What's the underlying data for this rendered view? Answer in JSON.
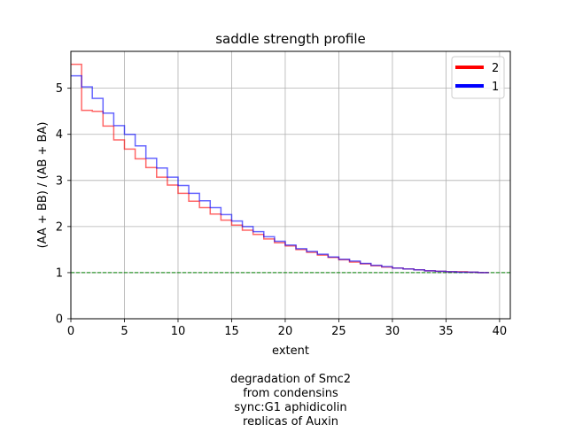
{
  "chart_data": {
    "type": "line",
    "title": "saddle strength profile",
    "xlabel": "extent",
    "ylabel": "(AA + BB) / (AB + BA)",
    "xlim": [
      0,
      41
    ],
    "ylim": [
      0,
      5.8
    ],
    "xticks": [
      0,
      5,
      10,
      15,
      20,
      25,
      30,
      35,
      40
    ],
    "yticks": [
      0,
      1,
      2,
      3,
      4,
      5
    ],
    "grid": true,
    "legend_position": "top-right",
    "reference_line": {
      "y": 1.0,
      "color": "#008000",
      "style": "dashed"
    },
    "series": [
      {
        "name": "2",
        "color": "#ff0000",
        "step_edges": [
          0,
          1,
          2,
          3,
          4,
          5,
          6,
          7,
          8,
          9,
          10,
          11,
          12,
          13,
          14,
          15,
          16,
          17,
          18,
          19,
          20,
          21,
          22,
          23,
          24,
          25,
          26,
          27,
          28,
          29,
          30,
          31,
          32,
          33,
          34,
          35,
          36,
          37,
          38,
          39
        ],
        "values": [
          5.52,
          4.52,
          4.5,
          4.18,
          3.88,
          3.68,
          3.47,
          3.28,
          3.07,
          2.9,
          2.72,
          2.55,
          2.41,
          2.27,
          2.14,
          2.03,
          1.92,
          1.83,
          1.73,
          1.65,
          1.58,
          1.5,
          1.44,
          1.38,
          1.33,
          1.28,
          1.23,
          1.19,
          1.15,
          1.12,
          1.1,
          1.08,
          1.06,
          1.04,
          1.03,
          1.02,
          1.02,
          1.01,
          1.0
        ]
      },
      {
        "name": "1",
        "color": "#0000ff",
        "step_edges": [
          0,
          1,
          2,
          3,
          4,
          5,
          6,
          7,
          8,
          9,
          10,
          11,
          12,
          13,
          14,
          15,
          16,
          17,
          18,
          19,
          20,
          21,
          22,
          23,
          24,
          25,
          26,
          27,
          28,
          29,
          30,
          31,
          32,
          33,
          34,
          35,
          36,
          37,
          38,
          39
        ],
        "values": [
          5.27,
          5.03,
          4.78,
          4.46,
          4.19,
          4.0,
          3.75,
          3.48,
          3.27,
          3.07,
          2.89,
          2.72,
          2.56,
          2.41,
          2.26,
          2.12,
          2.0,
          1.89,
          1.78,
          1.68,
          1.6,
          1.52,
          1.46,
          1.4,
          1.34,
          1.29,
          1.25,
          1.2,
          1.16,
          1.13,
          1.1,
          1.08,
          1.06,
          1.04,
          1.03,
          1.02,
          1.01,
          1.01,
          1.0
        ]
      }
    ],
    "caption": [
      "degradation of Smc2",
      "from condensins",
      "sync:G1 aphidicolin",
      "replicas of Auxin"
    ]
  }
}
